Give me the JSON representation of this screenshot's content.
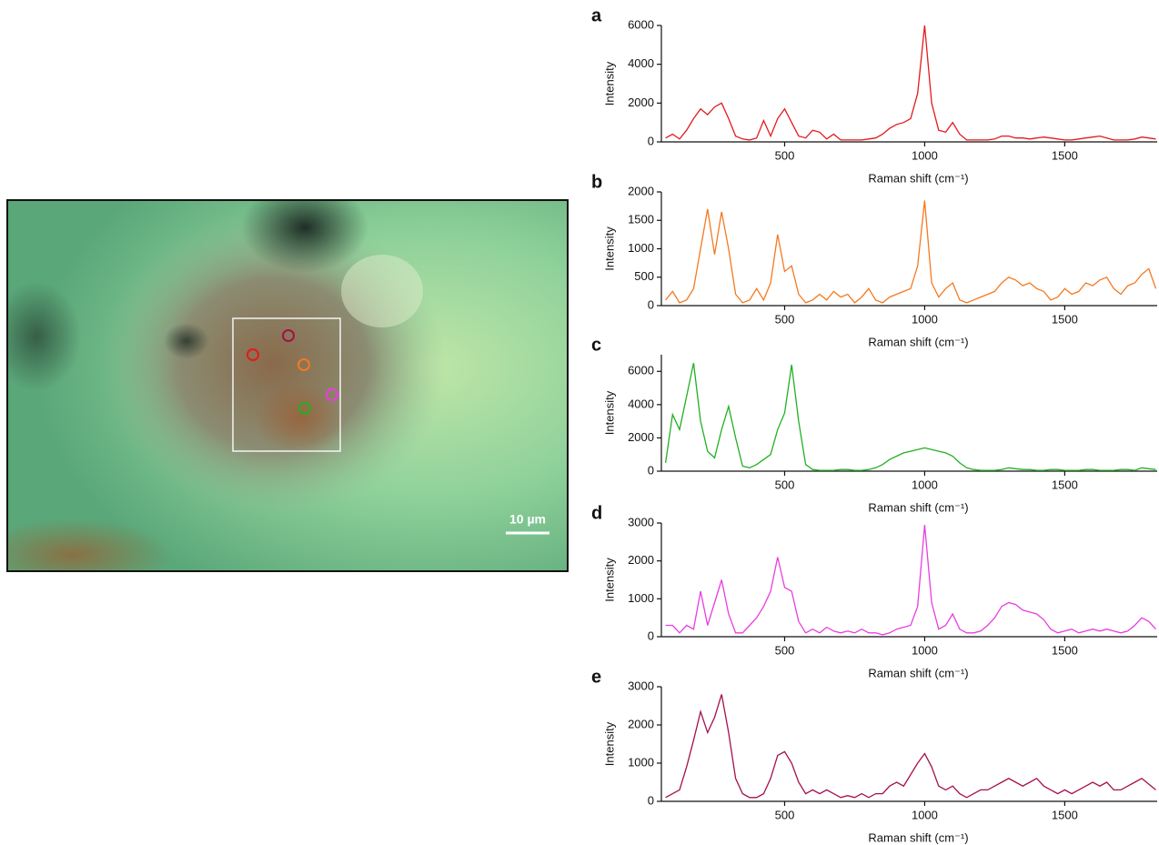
{
  "chart_data": [
    {
      "type": "line",
      "label": "a",
      "ylabel": "Intensity",
      "xlabel": "Raman shift (cm⁻¹)",
      "color": "#e31a1c",
      "x": [
        75,
        100,
        125,
        150,
        175,
        200,
        225,
        250,
        275,
        300,
        325,
        350,
        375,
        400,
        425,
        450,
        475,
        500,
        525,
        550,
        575,
        600,
        625,
        650,
        675,
        700,
        725,
        750,
        775,
        800,
        825,
        850,
        875,
        900,
        925,
        950,
        975,
        1000,
        1025,
        1050,
        1075,
        1100,
        1125,
        1150,
        1175,
        1200,
        1225,
        1250,
        1275,
        1300,
        1325,
        1350,
        1375,
        1400,
        1425,
        1450,
        1475,
        1500,
        1525,
        1550,
        1575,
        1600,
        1625,
        1650,
        1675,
        1700,
        1725,
        1750,
        1775,
        1800,
        1825
      ],
      "values": [
        200,
        400,
        150,
        600,
        1200,
        1700,
        1400,
        1800,
        2000,
        1200,
        300,
        150,
        100,
        200,
        1100,
        300,
        1200,
        1700,
        1000,
        300,
        200,
        600,
        500,
        150,
        400,
        100,
        100,
        100,
        100,
        150,
        200,
        400,
        700,
        900,
        1000,
        1200,
        2500,
        6000,
        2000,
        600,
        500,
        1000,
        400,
        100,
        100,
        100,
        100,
        150,
        300,
        300,
        200,
        200,
        150,
        200,
        250,
        200,
        150,
        100,
        100,
        150,
        200,
        250,
        300,
        200,
        100,
        100,
        100,
        150,
        250,
        200,
        150
      ],
      "xlim": [
        60,
        1830
      ],
      "xticks": [
        500,
        1000,
        1500
      ],
      "ylim": [
        0,
        6000
      ],
      "yticks": [
        0,
        2000,
        4000,
        6000
      ]
    },
    {
      "type": "line",
      "label": "b",
      "ylabel": "Intensity",
      "xlabel": "Raman shift (cm⁻¹)",
      "color": "#f47920",
      "x": [
        75,
        100,
        125,
        150,
        175,
        200,
        225,
        250,
        275,
        300,
        325,
        350,
        375,
        400,
        425,
        450,
        475,
        500,
        525,
        550,
        575,
        600,
        625,
        650,
        675,
        700,
        725,
        750,
        775,
        800,
        825,
        850,
        875,
        900,
        925,
        950,
        975,
        1000,
        1025,
        1050,
        1075,
        1100,
        1125,
        1150,
        1175,
        1200,
        1225,
        1250,
        1275,
        1300,
        1325,
        1350,
        1375,
        1400,
        1425,
        1450,
        1475,
        1500,
        1525,
        1550,
        1575,
        1600,
        1625,
        1650,
        1675,
        1700,
        1725,
        1750,
        1775,
        1800,
        1825
      ],
      "values": [
        100,
        250,
        50,
        100,
        300,
        1000,
        1700,
        900,
        1650,
        1000,
        200,
        50,
        100,
        300,
        100,
        400,
        1250,
        600,
        700,
        200,
        50,
        100,
        200,
        100,
        250,
        150,
        200,
        50,
        150,
        300,
        100,
        50,
        150,
        200,
        250,
        300,
        700,
        1850,
        400,
        150,
        300,
        400,
        100,
        50,
        100,
        150,
        200,
        250,
        400,
        500,
        450,
        350,
        400,
        300,
        250,
        100,
        150,
        300,
        200,
        250,
        400,
        350,
        450,
        500,
        300,
        200,
        350,
        400,
        550,
        650,
        300
      ],
      "xlim": [
        60,
        1830
      ],
      "xticks": [
        500,
        1000,
        1500
      ],
      "ylim": [
        0,
        2000
      ],
      "yticks": [
        0,
        500,
        1000,
        1500,
        2000
      ]
    },
    {
      "type": "line",
      "label": "c",
      "ylabel": "Intensity",
      "xlabel": "Raman shift (cm⁻¹)",
      "color": "#22b022",
      "x": [
        75,
        100,
        125,
        150,
        175,
        200,
        225,
        250,
        275,
        300,
        325,
        350,
        375,
        400,
        425,
        450,
        475,
        500,
        525,
        550,
        575,
        600,
        625,
        650,
        675,
        700,
        725,
        750,
        775,
        800,
        825,
        850,
        875,
        900,
        925,
        950,
        975,
        1000,
        1025,
        1050,
        1075,
        1100,
        1125,
        1150,
        1175,
        1200,
        1225,
        1250,
        1275,
        1300,
        1325,
        1350,
        1375,
        1400,
        1425,
        1450,
        1475,
        1500,
        1525,
        1550,
        1575,
        1600,
        1625,
        1650,
        1675,
        1700,
        1725,
        1750,
        1775,
        1800,
        1825
      ],
      "values": [
        500,
        3400,
        2500,
        4500,
        6500,
        3000,
        1200,
        800,
        2500,
        3900,
        2000,
        300,
        200,
        400,
        700,
        1000,
        2500,
        3500,
        6400,
        3000,
        400,
        100,
        50,
        50,
        50,
        100,
        100,
        50,
        50,
        100,
        200,
        400,
        700,
        900,
        1100,
        1200,
        1300,
        1400,
        1300,
        1200,
        1100,
        900,
        500,
        200,
        100,
        50,
        50,
        50,
        100,
        200,
        150,
        100,
        100,
        50,
        50,
        100,
        100,
        50,
        50,
        50,
        100,
        100,
        50,
        50,
        50,
        100,
        100,
        50,
        200,
        150,
        100
      ],
      "xlim": [
        60,
        1830
      ],
      "xticks": [
        500,
        1000,
        1500
      ],
      "ylim": [
        0,
        7000
      ],
      "yticks": [
        0,
        2000,
        4000,
        6000
      ]
    },
    {
      "type": "line",
      "label": "d",
      "ylabel": "Intensity",
      "xlabel": "Raman shift (cm⁻¹)",
      "color": "#e83ee0",
      "x": [
        75,
        100,
        125,
        150,
        175,
        200,
        225,
        250,
        275,
        300,
        325,
        350,
        375,
        400,
        425,
        450,
        475,
        500,
        525,
        550,
        575,
        600,
        625,
        650,
        675,
        700,
        725,
        750,
        775,
        800,
        825,
        850,
        875,
        900,
        925,
        950,
        975,
        1000,
        1025,
        1050,
        1075,
        1100,
        1125,
        1150,
        1175,
        1200,
        1225,
        1250,
        1275,
        1300,
        1325,
        1350,
        1375,
        1400,
        1425,
        1450,
        1475,
        1500,
        1525,
        1550,
        1575,
        1600,
        1625,
        1650,
        1675,
        1700,
        1725,
        1750,
        1775,
        1800,
        1825
      ],
      "values": [
        300,
        300,
        100,
        300,
        200,
        1200,
        300,
        900,
        1500,
        600,
        100,
        100,
        300,
        500,
        800,
        1200,
        2100,
        1300,
        1200,
        400,
        100,
        200,
        100,
        250,
        150,
        100,
        150,
        100,
        200,
        100,
        100,
        50,
        100,
        200,
        250,
        300,
        800,
        2950,
        900,
        200,
        300,
        600,
        200,
        100,
        100,
        150,
        300,
        500,
        800,
        900,
        850,
        700,
        650,
        600,
        450,
        200,
        100,
        150,
        200,
        100,
        150,
        200,
        150,
        200,
        150,
        100,
        150,
        300,
        500,
        400,
        200
      ],
      "xlim": [
        60,
        1830
      ],
      "xticks": [
        500,
        1000,
        1500
      ],
      "ylim": [
        0,
        3000
      ],
      "yticks": [
        0,
        1000,
        2000,
        3000
      ]
    },
    {
      "type": "line",
      "label": "e",
      "ylabel": "Intensity",
      "xlabel": "Raman shift (cm⁻¹)",
      "color": "#a3104e",
      "x": [
        75,
        100,
        125,
        150,
        175,
        200,
        225,
        250,
        275,
        300,
        325,
        350,
        375,
        400,
        425,
        450,
        475,
        500,
        525,
        550,
        575,
        600,
        625,
        650,
        675,
        700,
        725,
        750,
        775,
        800,
        825,
        850,
        875,
        900,
        925,
        950,
        975,
        1000,
        1025,
        1050,
        1075,
        1100,
        1125,
        1150,
        1175,
        1200,
        1225,
        1250,
        1275,
        1300,
        1325,
        1350,
        1375,
        1400,
        1425,
        1450,
        1475,
        1500,
        1525,
        1550,
        1575,
        1600,
        1625,
        1650,
        1675,
        1700,
        1725,
        1750,
        1775,
        1800,
        1825
      ],
      "values": [
        100,
        200,
        300,
        900,
        1600,
        2350,
        1800,
        2200,
        2800,
        1800,
        600,
        200,
        100,
        100,
        200,
        600,
        1200,
        1300,
        1000,
        500,
        200,
        300,
        200,
        300,
        200,
        100,
        150,
        100,
        200,
        100,
        200,
        200,
        400,
        500,
        400,
        700,
        1000,
        1250,
        900,
        400,
        300,
        400,
        200,
        100,
        200,
        300,
        300,
        400,
        500,
        600,
        500,
        400,
        500,
        600,
        400,
        300,
        200,
        300,
        200,
        300,
        400,
        500,
        400,
        500,
        300,
        300,
        400,
        500,
        600,
        450,
        300
      ],
      "xlim": [
        60,
        1830
      ],
      "xticks": [
        500,
        1000,
        1500
      ],
      "ylim": [
        0,
        3000
      ],
      "yticks": [
        0,
        1000,
        2000,
        3000
      ]
    }
  ],
  "image": {
    "scale_bar_label": "10 µm"
  }
}
